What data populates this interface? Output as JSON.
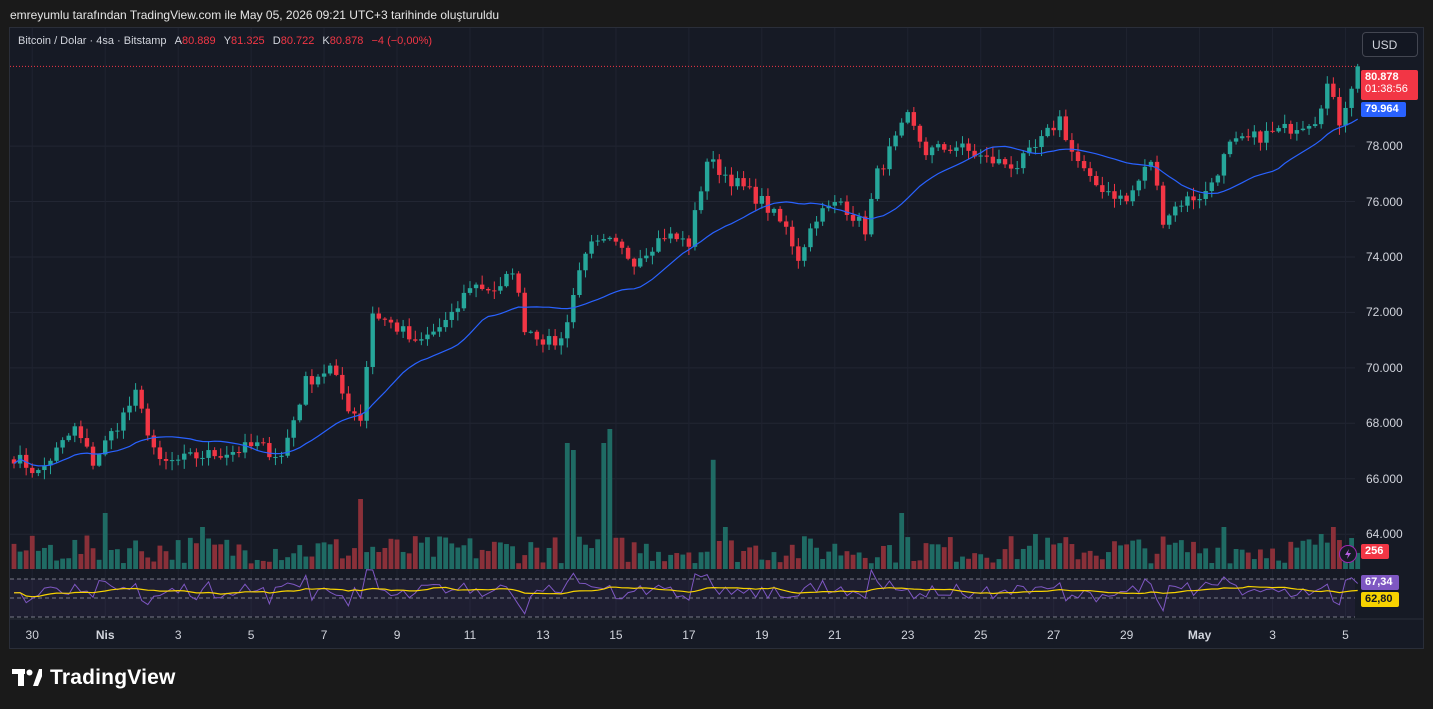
{
  "header": {
    "caption": "emreyumlu tarafından TradingView.com ile May 05, 2026 09:21 UTC+3 tarihinde oluşturuldu"
  },
  "symbol_line": {
    "symbol": "Bitcoin / Dolar · 4sa · Bitstamp",
    "open_label": "A",
    "open": "80.889",
    "high_label": "Y",
    "high": "81.325",
    "low_label": "D",
    "low": "80.722",
    "close_label": "K",
    "close": "80.878",
    "change": "−4 (−0,00%)"
  },
  "currency_button": "USD",
  "badges": {
    "last_price": "80.878",
    "countdown": "01:38:56",
    "ma_value": "79.964",
    "volume": "256",
    "rsi": "67,34",
    "rsi_ma": "62,80"
  },
  "colors": {
    "up": "#26a69a",
    "down": "#f23645",
    "ma": "#2962ff",
    "rsi": "#7e57c2",
    "rsi_ma": "#f7d200",
    "background": "#161a25"
  },
  "brand": "TradingView",
  "chart_data": {
    "type": "candlestick",
    "title": "Bitcoin / Dolar · 4sa · Bitstamp",
    "price_axis": {
      "ticks": [
        "80.878",
        "78.000",
        "76.000",
        "74.000",
        "72.000",
        "70.000",
        "68.000",
        "66.000",
        "64.000"
      ],
      "ylim": [
        62600,
        81900
      ]
    },
    "time_axis": {
      "ticks": [
        "30",
        "Nis",
        "3",
        "5",
        "7",
        "9",
        "11",
        "13",
        "15",
        "17",
        "19",
        "21",
        "23",
        "25",
        "27",
        "29",
        "May",
        "3",
        "5"
      ],
      "tick_candle_index": [
        3,
        15,
        27,
        39,
        51,
        63,
        75,
        87,
        99,
        111,
        123,
        135,
        147,
        159,
        171,
        183,
        195,
        207,
        219
      ]
    },
    "candle_count": 222,
    "waypoints": [
      [
        0,
        66800
      ],
      [
        4,
        66200
      ],
      [
        10,
        67800
      ],
      [
        13,
        66600
      ],
      [
        18,
        68300
      ],
      [
        20,
        69000
      ],
      [
        24,
        66500
      ],
      [
        30,
        66800
      ],
      [
        36,
        67000
      ],
      [
        40,
        67200
      ],
      [
        44,
        66800
      ],
      [
        48,
        69500
      ],
      [
        52,
        70000
      ],
      [
        55,
        68600
      ],
      [
        57,
        68200
      ],
      [
        59,
        72000
      ],
      [
        64,
        71300
      ],
      [
        66,
        70800
      ],
      [
        72,
        71800
      ],
      [
        75,
        73000
      ],
      [
        80,
        72800
      ],
      [
        82,
        73600
      ],
      [
        84,
        71500
      ],
      [
        88,
        70900
      ],
      [
        90,
        71000
      ],
      [
        94,
        74300
      ],
      [
        98,
        74500
      ],
      [
        102,
        73900
      ],
      [
        107,
        74800
      ],
      [
        111,
        74500
      ],
      [
        114,
        77500
      ],
      [
        118,
        76800
      ],
      [
        123,
        76000
      ],
      [
        127,
        75000
      ],
      [
        129,
        74000
      ],
      [
        132,
        75500
      ],
      [
        136,
        76000
      ],
      [
        140,
        75000
      ],
      [
        142,
        77000
      ],
      [
        145,
        78200
      ],
      [
        147,
        79000
      ],
      [
        150,
        77800
      ],
      [
        155,
        78000
      ],
      [
        160,
        77500
      ],
      [
        165,
        77300
      ],
      [
        168,
        77900
      ],
      [
        172,
        79000
      ],
      [
        174,
        77800
      ],
      [
        177,
        76700
      ],
      [
        180,
        76400
      ],
      [
        183,
        76000
      ],
      [
        187,
        77500
      ],
      [
        189,
        75400
      ],
      [
        192,
        76000
      ],
      [
        196,
        76300
      ],
      [
        200,
        78000
      ],
      [
        204,
        78300
      ],
      [
        209,
        78600
      ],
      [
        214,
        79000
      ],
      [
        216,
        80200
      ],
      [
        218,
        78900
      ],
      [
        221,
        80878
      ]
    ],
    "volume_spikes": [
      [
        15,
        0.4
      ],
      [
        31,
        0.3
      ],
      [
        57,
        0.5
      ],
      [
        91,
        0.9
      ],
      [
        92,
        0.85
      ],
      [
        97,
        0.9
      ],
      [
        98,
        1.0
      ],
      [
        115,
        0.78
      ],
      [
        117,
        0.3
      ],
      [
        146,
        0.4
      ],
      [
        168,
        0.25
      ],
      [
        199,
        0.3
      ],
      [
        215,
        0.25
      ],
      [
        217,
        0.3
      ]
    ],
    "moving_average": {
      "value": 79964,
      "period": 20
    },
    "rsi": {
      "value": 67.34,
      "ma": 62.8,
      "bands": [
        70,
        50,
        30
      ],
      "ylim": [
        0,
        100
      ]
    },
    "volume_last": 256,
    "grid": true
  }
}
